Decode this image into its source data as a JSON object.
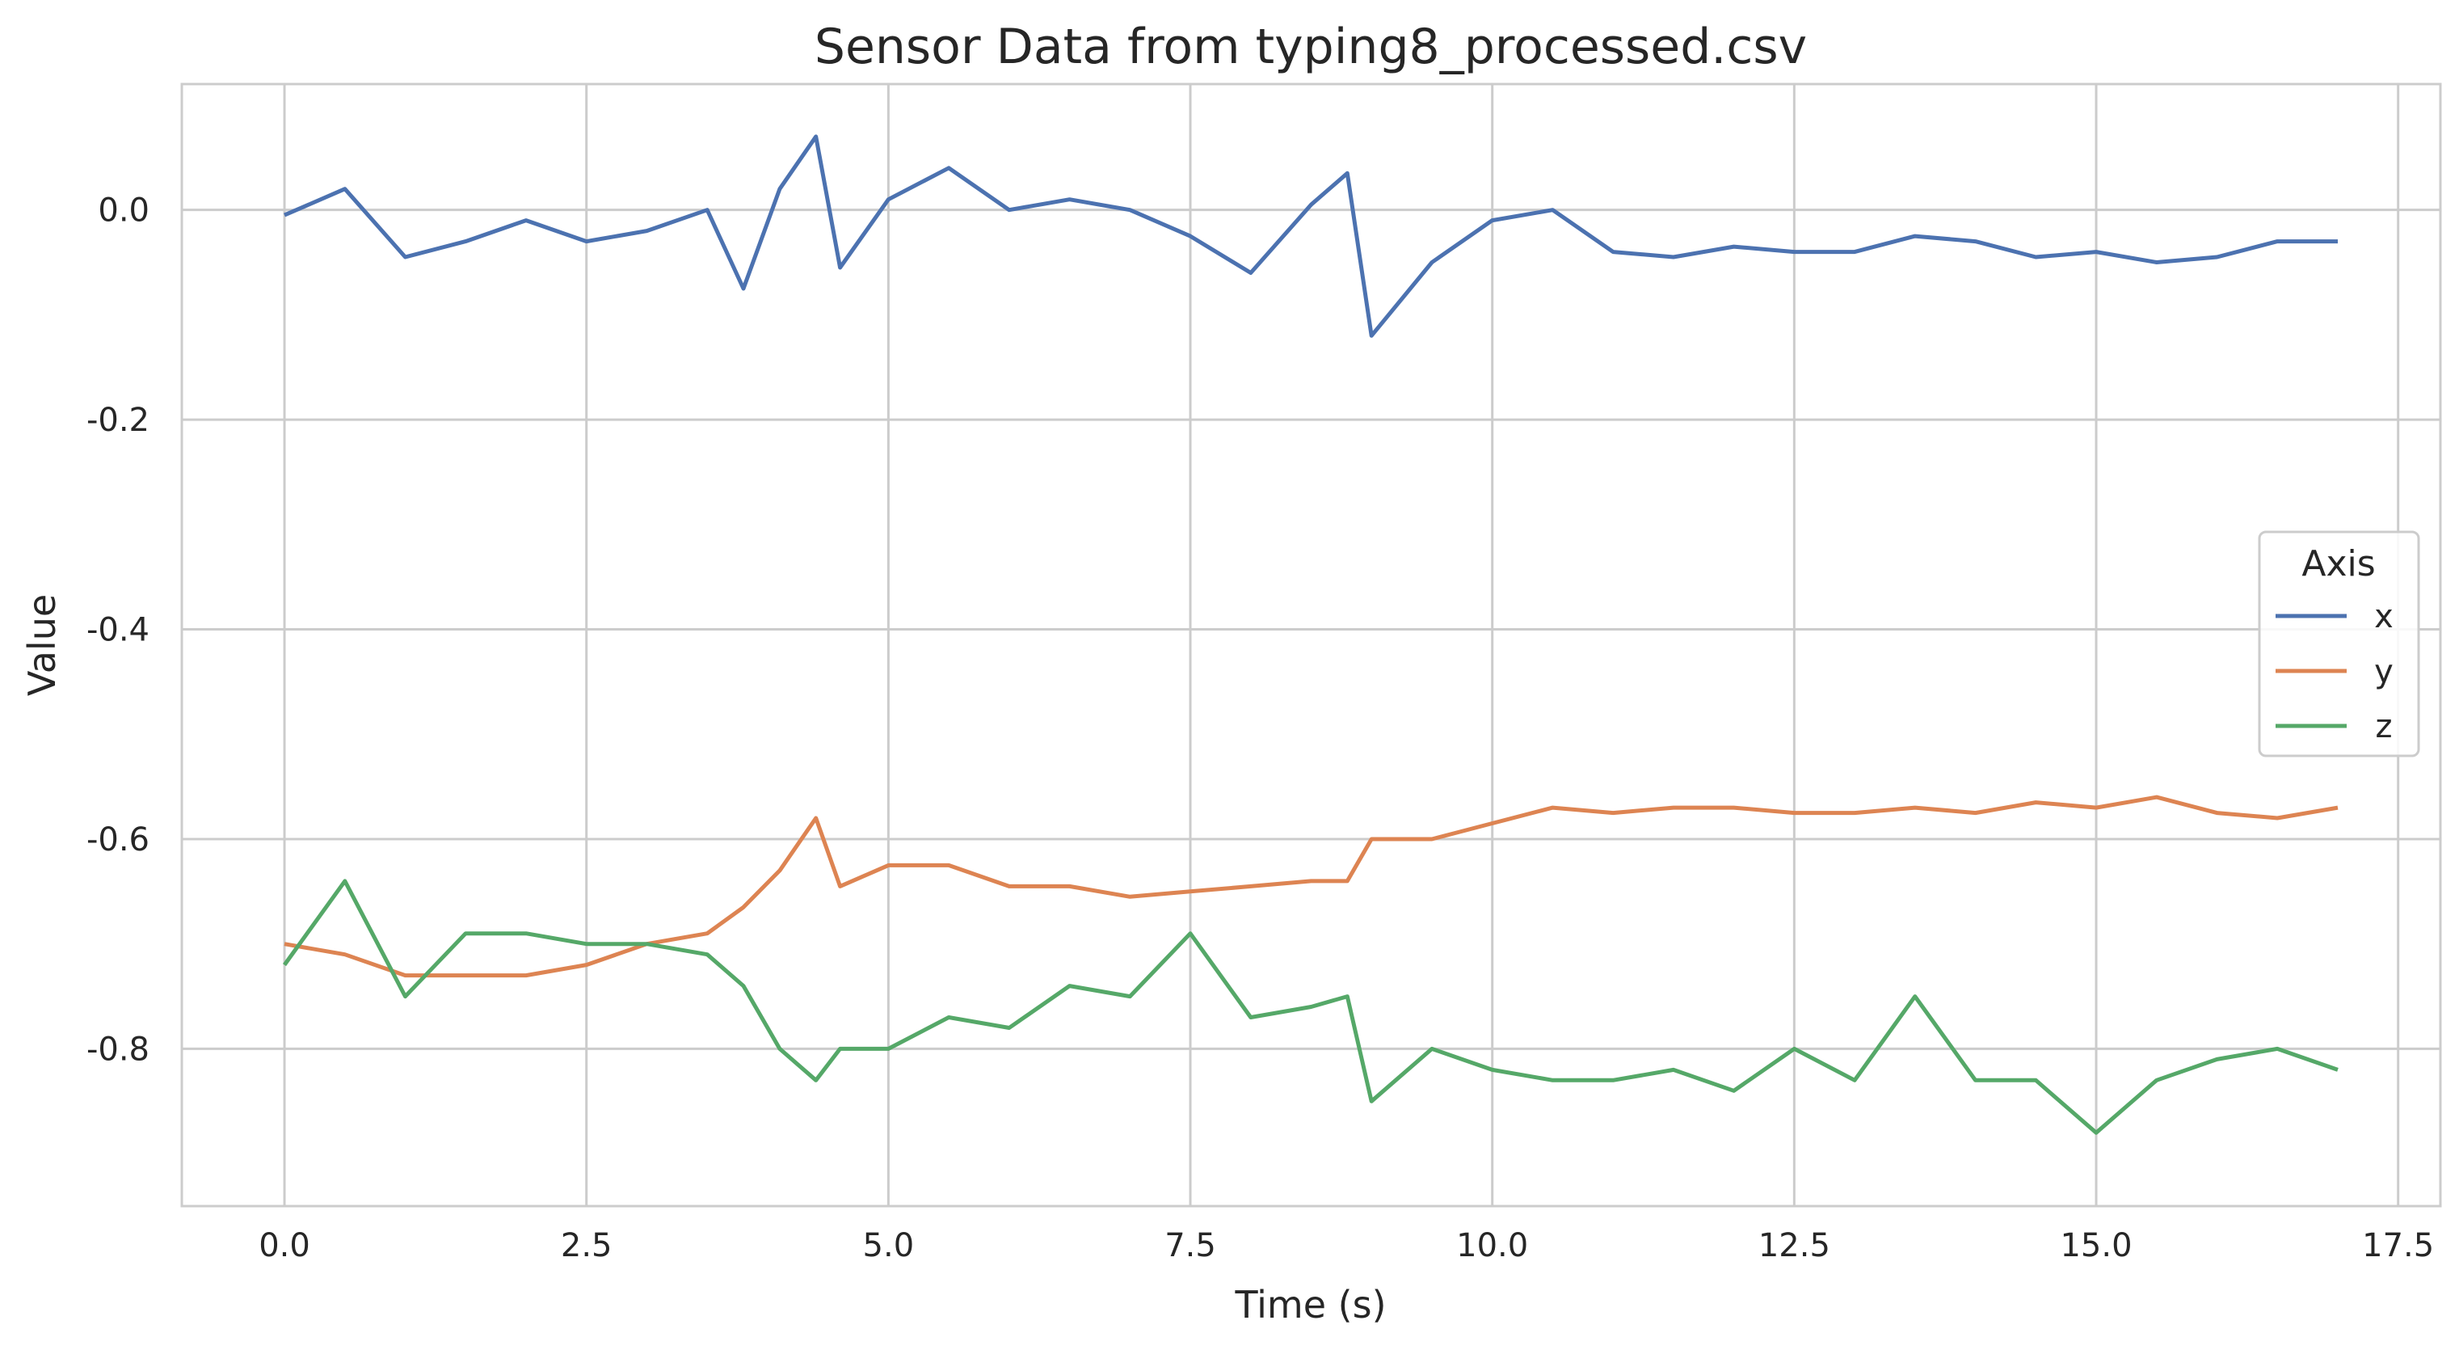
{
  "chart_data": {
    "type": "line",
    "title": "Sensor Data from typing8_processed.csv",
    "xlabel": "Time (s)",
    "ylabel": "Value",
    "xlim": [
      -0.85,
      17.85
    ],
    "ylim": [
      -0.95,
      0.12
    ],
    "x_ticks": [
      0.0,
      2.5,
      5.0,
      7.5,
      10.0,
      12.5,
      15.0,
      17.5
    ],
    "x_tick_labels": [
      "0.0",
      "2.5",
      "5.0",
      "7.5",
      "10.0",
      "12.5",
      "15.0",
      "17.5"
    ],
    "y_ticks": [
      0.0,
      -0.2,
      -0.4,
      -0.6,
      -0.8
    ],
    "y_tick_labels": [
      "0.0",
      "-0.2",
      "-0.4",
      "-0.6",
      "-0.8"
    ],
    "grid": true,
    "legend": {
      "title": "Axis",
      "position": "center-right"
    },
    "x": [
      0.0,
      0.5,
      1.0,
      1.5,
      2.0,
      2.5,
      3.0,
      3.5,
      3.8,
      4.1,
      4.4,
      4.6,
      5.0,
      5.5,
      6.0,
      6.5,
      7.0,
      7.5,
      8.0,
      8.5,
      8.8,
      9.0,
      9.5,
      10.0,
      10.5,
      11.0,
      11.5,
      12.0,
      12.5,
      13.0,
      13.5,
      14.0,
      14.5,
      15.0,
      15.5,
      16.0,
      16.5,
      17.0
    ],
    "series": [
      {
        "name": "x",
        "color": "#4c72b0",
        "values": [
          -0.005,
          0.02,
          -0.045,
          -0.03,
          -0.01,
          -0.03,
          -0.02,
          0.0,
          -0.075,
          0.02,
          0.07,
          -0.055,
          0.01,
          0.04,
          0.0,
          0.01,
          0.0,
          -0.025,
          -0.06,
          0.005,
          0.035,
          -0.12,
          -0.05,
          -0.01,
          0.0,
          -0.04,
          -0.045,
          -0.035,
          -0.04,
          -0.04,
          -0.025,
          -0.03,
          -0.045,
          -0.04,
          -0.05,
          -0.045,
          -0.03,
          -0.03
        ]
      },
      {
        "name": "y",
        "color": "#dd8452",
        "values": [
          -0.7,
          -0.71,
          -0.73,
          -0.73,
          -0.73,
          -0.72,
          -0.7,
          -0.69,
          -0.665,
          -0.63,
          -0.58,
          -0.645,
          -0.625,
          -0.625,
          -0.645,
          -0.645,
          -0.655,
          -0.65,
          -0.645,
          -0.64,
          -0.64,
          -0.6,
          -0.6,
          -0.585,
          -0.57,
          -0.575,
          -0.57,
          -0.57,
          -0.575,
          -0.575,
          -0.57,
          -0.575,
          -0.565,
          -0.57,
          -0.56,
          -0.575,
          -0.58,
          -0.57
        ]
      },
      {
        "name": "z",
        "color": "#55a868",
        "values": [
          -0.72,
          -0.64,
          -0.75,
          -0.69,
          -0.69,
          -0.7,
          -0.7,
          -0.71,
          -0.74,
          -0.8,
          -0.83,
          -0.8,
          -0.8,
          -0.77,
          -0.78,
          -0.74,
          -0.75,
          -0.69,
          -0.77,
          -0.76,
          -0.75,
          -0.85,
          -0.8,
          -0.82,
          -0.83,
          -0.83,
          -0.82,
          -0.84,
          -0.8,
          -0.83,
          -0.75,
          -0.83,
          -0.83,
          -0.88,
          -0.83,
          -0.81,
          -0.8,
          -0.82
        ]
      }
    ]
  }
}
